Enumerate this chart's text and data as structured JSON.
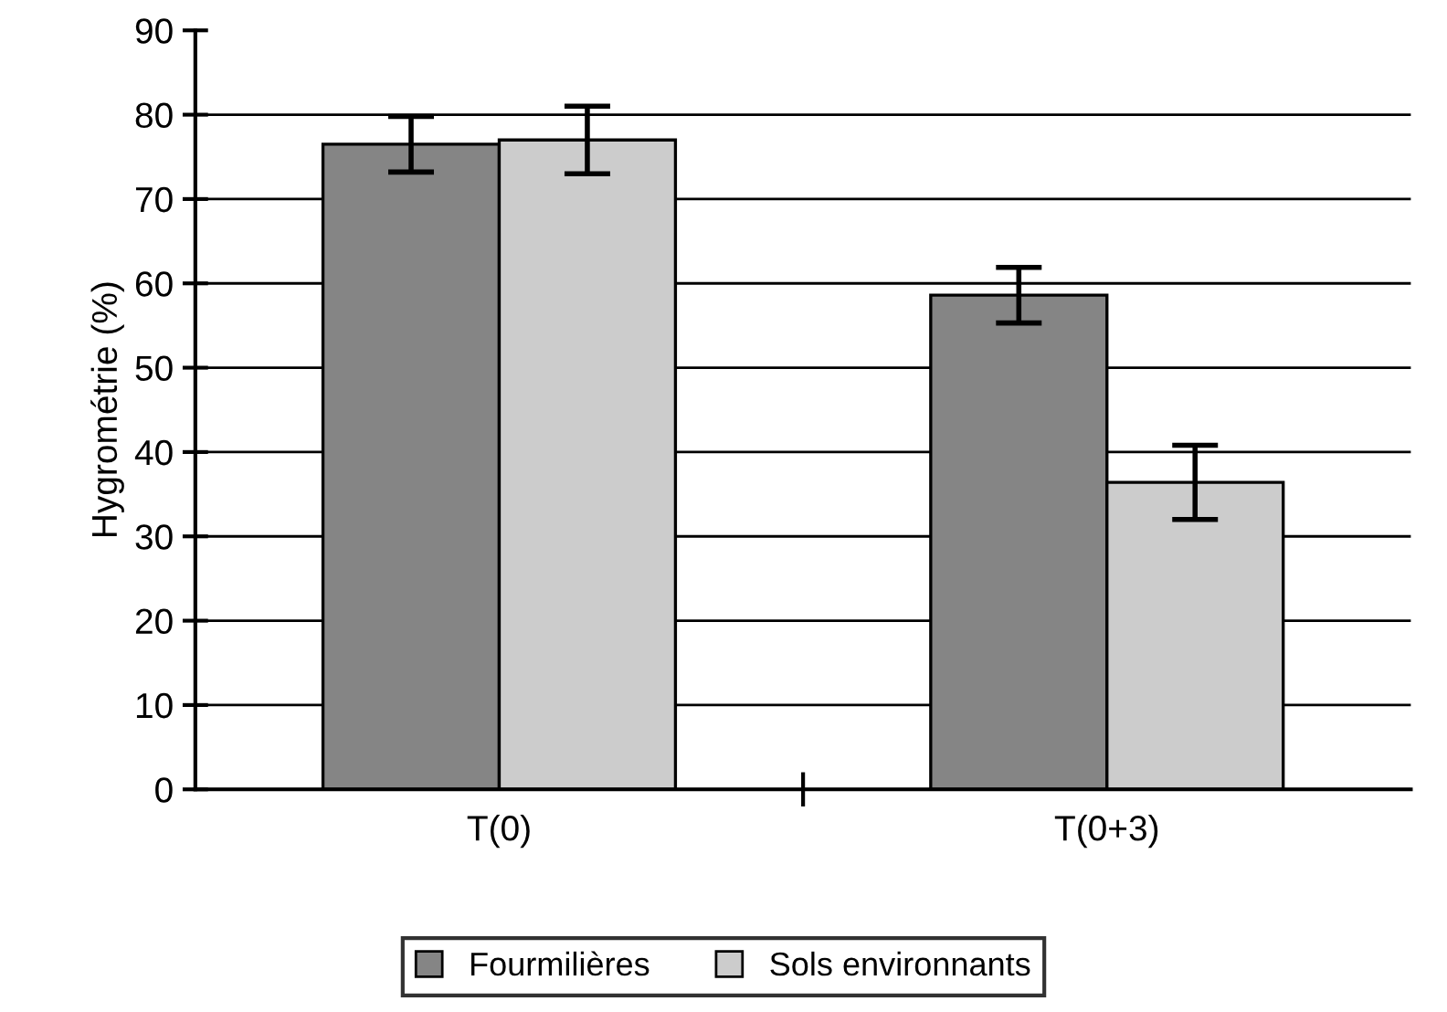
{
  "chart_data": {
    "type": "bar",
    "ylabel": "Hygrométrie (%)",
    "categories": [
      "T(0)",
      "T(0+3)"
    ],
    "series": [
      {
        "name": "Fourmilières",
        "color": "#858585",
        "values": [
          76.5,
          58.6
        ],
        "errors": [
          3.3,
          3.3
        ]
      },
      {
        "name": "Sols environnants",
        "color": "#cccccc",
        "values": [
          77.0,
          36.4
        ],
        "errors": [
          4.0,
          4.4
        ]
      }
    ],
    "ylim": [
      0,
      90
    ],
    "yticks": [
      0,
      10,
      20,
      30,
      40,
      50,
      60,
      70,
      80,
      90
    ],
    "grid": "y",
    "legend": "bottom"
  }
}
